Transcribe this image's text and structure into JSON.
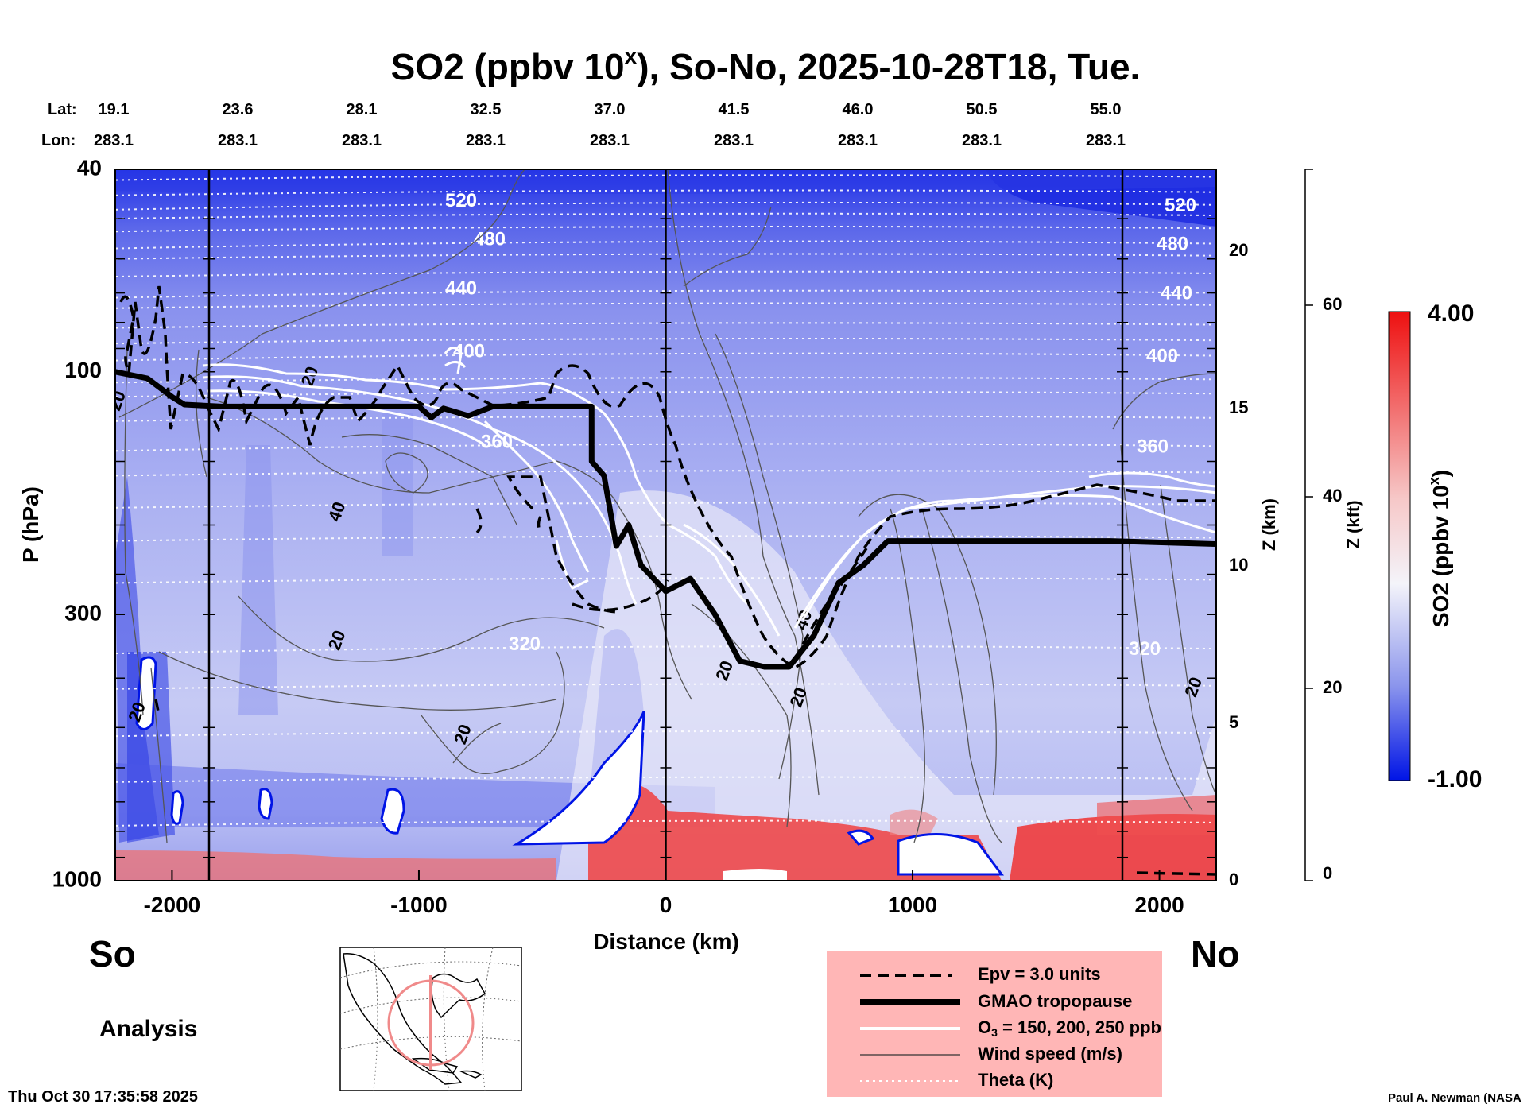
{
  "chart_data": {
    "type": "heatmap",
    "title_main": "SO2 (ppbv 10",
    "title_sup": "x",
    "title_rest": "), So-No, 2025-10-28T18, Tue.",
    "lat_label": "Lat:",
    "lon_label": "Lon:",
    "lat_ticks": [
      "19.1",
      "23.6",
      "28.1",
      "32.5",
      "37.0",
      "41.5",
      "46.0",
      "50.5",
      "55.0"
    ],
    "lon_ticks": [
      "283.1",
      "283.1",
      "283.1",
      "283.1",
      "283.1",
      "283.1",
      "283.1",
      "283.1",
      "283.1"
    ],
    "xlabel": "Distance (km)",
    "xlim": [
      -2230,
      2230
    ],
    "x_ticks": [
      -2000,
      -1000,
      0,
      1000,
      2000
    ],
    "x_tick_labels": [
      "-2000",
      "-1000",
      "0",
      "1000",
      "2000"
    ],
    "ylabel": "P (hPa)",
    "ylim": [
      1000,
      40
    ],
    "y_scale": "log",
    "y_ticks": [
      40,
      100,
      300,
      1000
    ],
    "y_tick_labels": [
      "40",
      "100",
      "300",
      "1000"
    ],
    "z_km_label": "Z (km)",
    "z_km_ticks": [
      "0",
      "5",
      "10",
      "15",
      "20"
    ],
    "z_kft_label": "Z (kft)",
    "z_kft_ticks": [
      "0",
      "20",
      "40",
      "60"
    ],
    "vertical_lines_km": [
      -1850,
      0,
      1850
    ],
    "colorbar": {
      "label_main": "SO2 (ppbv 10",
      "label_sup": "x",
      "label_end": ")",
      "max_label": "4.00",
      "min_label": "-1.00",
      "vmin": -1.0,
      "vmax": 4.0
    },
    "theta_contours": [
      {
        "label": "520",
        "p": 47
      },
      {
        "label": "480",
        "p": 56
      },
      {
        "label": "440",
        "p": 70
      },
      {
        "label": "400",
        "p": 93
      },
      {
        "label": "360",
        "p": 140
      },
      {
        "label": "320",
        "p": 350
      }
    ],
    "wind_speed_labels": [
      {
        "label": "20",
        "x_km": -2200,
        "p": 115
      },
      {
        "label": "20",
        "x_km": -1420,
        "p": 103
      },
      {
        "label": "40",
        "x_km": -1310,
        "p": 190
      },
      {
        "label": "20",
        "x_km": -1310,
        "p": 340
      },
      {
        "label": "20",
        "x_km": -800,
        "p": 520
      },
      {
        "label": "20",
        "x_km": -2120,
        "p": 470
      },
      {
        "label": "20",
        "x_km": 260,
        "p": 390
      },
      {
        "label": "20",
        "x_km": 560,
        "p": 440
      },
      {
        "label": "40",
        "x_km": 580,
        "p": 310
      },
      {
        "label": "20",
        "x_km": 2160,
        "p": 420
      }
    ],
    "tropopause_hpa": [
      [
        -2230,
        100
      ],
      [
        -2100,
        103
      ],
      [
        -2000,
        112
      ],
      [
        -1950,
        116
      ],
      [
        -1800,
        117
      ],
      [
        -1500,
        117
      ],
      [
        -1000,
        117
      ],
      [
        -950,
        123
      ],
      [
        -900,
        118
      ],
      [
        -800,
        122
      ],
      [
        -700,
        117
      ],
      [
        -500,
        117
      ],
      [
        -300,
        117
      ],
      [
        -300,
        150
      ],
      [
        -250,
        160
      ],
      [
        -200,
        220
      ],
      [
        -150,
        200
      ],
      [
        -100,
        240
      ],
      [
        0,
        270
      ],
      [
        100,
        255
      ],
      [
        200,
        300
      ],
      [
        300,
        370
      ],
      [
        400,
        380
      ],
      [
        500,
        380
      ],
      [
        600,
        330
      ],
      [
        700,
        260
      ],
      [
        800,
        240
      ],
      [
        900,
        215
      ],
      [
        1200,
        215
      ],
      [
        1800,
        215
      ],
      [
        2230,
        218
      ]
    ],
    "legend": [
      {
        "style": "dashed",
        "label": "Epv = 3.0 units"
      },
      {
        "style": "thick",
        "label": "GMAO tropopause"
      },
      {
        "style": "white",
        "label_main": "O",
        "label_sub": "3",
        "label_rest": " = 150, 200, 250 ppb"
      },
      {
        "style": "thin",
        "label": "Wind speed (m/s)"
      },
      {
        "style": "dotted",
        "label": "Theta (K)"
      }
    ],
    "left_label": "So",
    "right_label": "No",
    "mode_label": "Analysis"
  },
  "footer": {
    "timestamp": "Thu Oct 30 17:35:58 2025",
    "author": "Paul A. Newman (NASA"
  },
  "colors": {
    "blue_deep": "#0010e0",
    "blue_light": "#c8ccf4",
    "red": "#ee1111",
    "legend_bg": "#ffb6b6"
  }
}
